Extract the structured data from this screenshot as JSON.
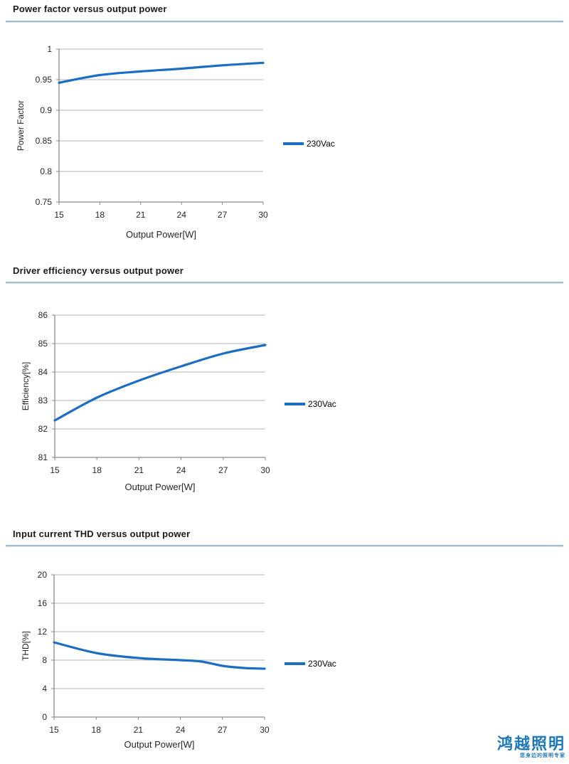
{
  "logo": {
    "title": "鸿越照明",
    "tagline": "您身边的照明专家",
    "color": "#1e78b8"
  },
  "sections": [
    {
      "title": "Power factor versus output power"
    },
    {
      "title": "Driver efficiency versus output power"
    },
    {
      "title": "Input current THD versus output power"
    }
  ],
  "chart_data": [
    {
      "type": "line",
      "title": "Power factor versus output power",
      "x": [
        15,
        18,
        21,
        24,
        27,
        30
      ],
      "series": [
        {
          "name": "230Vac",
          "values": [
            0.945,
            0.9575,
            0.9635,
            0.968,
            0.9735,
            0.9775
          ],
          "color": "#1b6ec2"
        }
      ],
      "xlabel": "Output Power[W]",
      "ylabel": "Power Factor",
      "ylim": [
        0.75,
        1
      ],
      "yticks": [
        0.75,
        0.8,
        0.85,
        0.9,
        0.95,
        1
      ],
      "ytick_labels": [
        "0.75",
        "0.8",
        "0.85",
        "0.9",
        "0.95",
        "1"
      ],
      "xticks": [
        15,
        18,
        21,
        24,
        27,
        30
      ],
      "xtick_labels": [
        "15",
        "18",
        "21",
        "24",
        "27",
        "30"
      ],
      "legend": "230Vac",
      "legend_position": "right",
      "grid": "horizontal"
    },
    {
      "type": "line",
      "title": "Driver efficiency versus output power",
      "x": [
        15,
        18,
        21,
        24,
        27,
        30
      ],
      "series": [
        {
          "name": "230Vac",
          "values": [
            82.3,
            83.1,
            83.7,
            84.2,
            84.65,
            84.95
          ],
          "color": "#1b6ec2"
        }
      ],
      "xlabel": "Output Power[W]",
      "ylabel": "Efficiency[%]",
      "ylim": [
        81,
        86
      ],
      "yticks": [
        81,
        82,
        83,
        84,
        85,
        86
      ],
      "ytick_labels": [
        "81",
        "82",
        "83",
        "84",
        "85",
        "86"
      ],
      "xticks": [
        15,
        18,
        21,
        24,
        27,
        30
      ],
      "xtick_labels": [
        "15",
        "18",
        "21",
        "24",
        "27",
        "30"
      ],
      "legend": "230Vac",
      "legend_position": "right",
      "grid": "horizontal"
    },
    {
      "type": "line",
      "title": "Input current THD versus output power",
      "x": [
        15,
        18,
        21,
        24,
        25.5,
        27,
        28.5,
        30
      ],
      "series": [
        {
          "name": "230Vac",
          "values": [
            10.5,
            9.0,
            8.3,
            8.0,
            7.8,
            7.2,
            6.9,
            6.8
          ],
          "color": "#1b6ec2"
        }
      ],
      "xlabel": "Output Power[W]",
      "ylabel": "THD[%]",
      "ylim": [
        0,
        20
      ],
      "yticks": [
        0,
        4,
        8,
        12,
        16,
        20
      ],
      "ytick_labels": [
        "0",
        "4",
        "8",
        "12",
        "16",
        "20"
      ],
      "xticks": [
        15,
        18,
        21,
        24,
        27,
        30
      ],
      "xtick_labels": [
        "15",
        "18",
        "21",
        "24",
        "27",
        "30"
      ],
      "legend": "230Vac",
      "legend_position": "right",
      "grid": "horizontal"
    }
  ],
  "style": {
    "series_color": "#1b6ec2",
    "grid_color": "#b3b3b3",
    "axis_color": "#8a8a8a",
    "tick_text_color": "#262626",
    "divider_color": "#a3bccb"
  }
}
